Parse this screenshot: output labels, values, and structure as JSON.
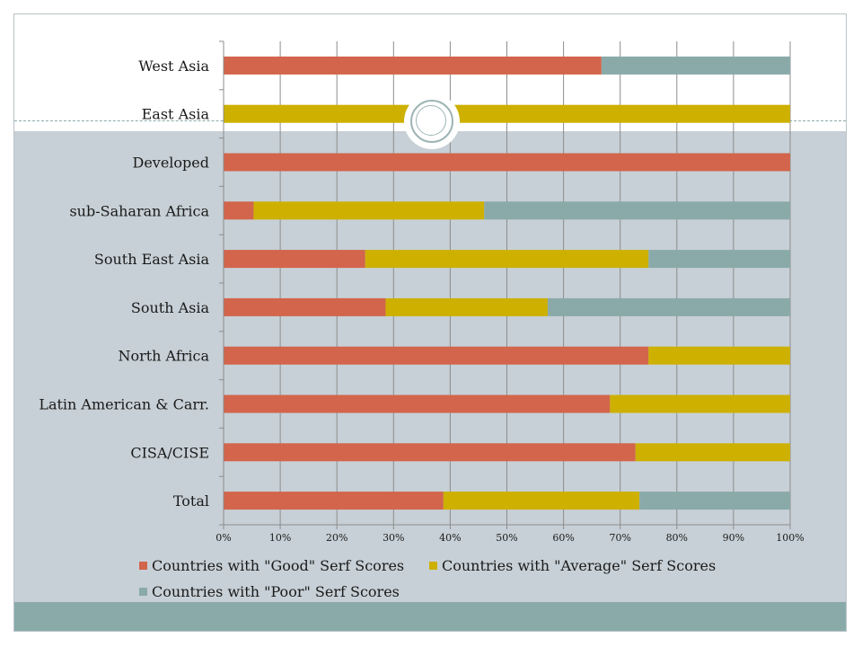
{
  "chart_data": {
    "type": "bar",
    "orientation": "horizontal",
    "stacked": true,
    "categories": [
      "West Asia",
      "East Asia",
      "Developed",
      "sub-Saharan Africa",
      "South East Asia",
      "South Asia",
      "North Africa",
      "Latin American & Carr.",
      "CISA/CISE",
      "Total"
    ],
    "series": [
      {
        "name": "Countries with \"Good\" Serf Scores",
        "color": "#d2654b",
        "values": [
          66.7,
          0,
          100,
          5.3,
          25,
          28.6,
          75,
          68.2,
          72.7,
          38.8
        ]
      },
      {
        "name": "Countries with \"Average\" Serf Scores",
        "color": "#cdb000",
        "values": [
          0,
          100,
          0,
          40.7,
          50,
          28.6,
          25,
          31.8,
          27.3,
          34.6
        ]
      },
      {
        "name": "Countries with \"Poor\" Serf Scores",
        "color": "#8aaaaa",
        "values": [
          33.3,
          0,
          0,
          54,
          25,
          42.8,
          0,
          0,
          0,
          26.6
        ]
      }
    ],
    "xticks": [
      "0%",
      "10%",
      "20%",
      "30%",
      "40%",
      "50%",
      "60%",
      "70%",
      "80%",
      "90%",
      "100%"
    ],
    "xlim": [
      0,
      100
    ],
    "grid": true,
    "legend_position": "bottom"
  }
}
